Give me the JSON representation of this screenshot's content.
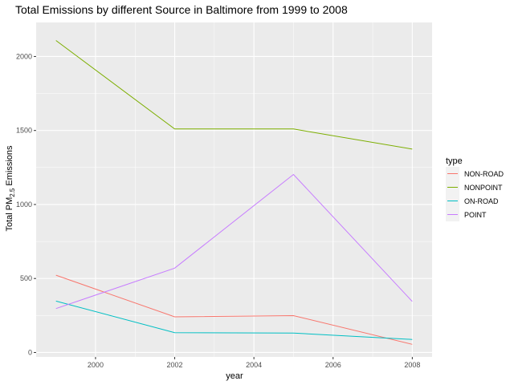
{
  "chart_data": {
    "type": "line",
    "title": "Total Emissions by different Source in Baltimore from 1999 to 2008",
    "xlabel": "year",
    "ylabel": "Total PM2.5 Emissions",
    "ylabel_parts": {
      "pre": "Total PM",
      "sub": "2.5",
      "post": " Emissions"
    },
    "x": [
      1999,
      2002,
      2005,
      2008
    ],
    "xlim": [
      1998.5,
      2008.5
    ],
    "ylim": [
      -30,
      2230
    ],
    "x_ticks": [
      2000,
      2002,
      2004,
      2006,
      2008
    ],
    "y_ticks": [
      0,
      500,
      1000,
      1500,
      2000
    ],
    "grid": true,
    "legend_title": "type",
    "legend_position": "right",
    "series": [
      {
        "name": "NON-ROAD",
        "color": "#F8766D",
        "values": [
          522,
          241,
          249,
          55
        ]
      },
      {
        "name": "NONPOINT",
        "color": "#7CAE00",
        "values": [
          2108,
          1510,
          1510,
          1374
        ]
      },
      {
        "name": "ON-ROAD",
        "color": "#00BFC4",
        "values": [
          347,
          134,
          131,
          88
        ]
      },
      {
        "name": "POINT",
        "color": "#C77CFF",
        "values": [
          297,
          570,
          1203,
          345
        ]
      }
    ]
  }
}
